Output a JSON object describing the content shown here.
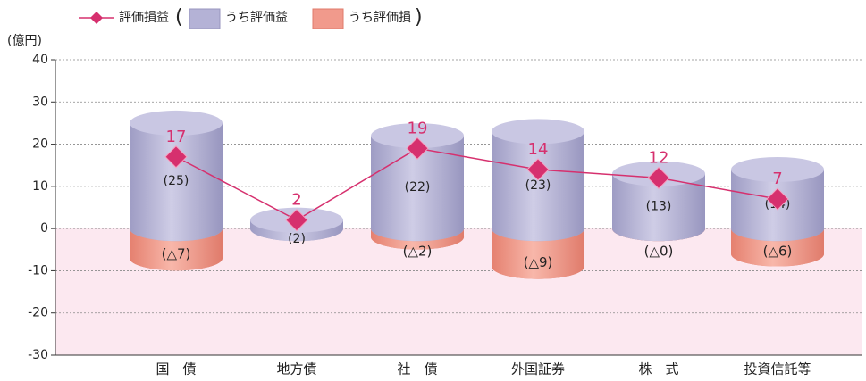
{
  "chart_data": {
    "type": "bar",
    "y_label": "(億円)",
    "categories": [
      "国　債",
      "地方債",
      "社　債",
      "外国証券",
      "株　式",
      "投資信託等"
    ],
    "series": [
      {
        "name": "評価損益",
        "type": "line",
        "color": "#d6306e",
        "values": [
          17,
          2,
          19,
          14,
          12,
          7
        ]
      },
      {
        "name": "うち評価益",
        "color": "#b4b2d6",
        "values": [
          25,
          2,
          22,
          23,
          13,
          14
        ],
        "value_labels": [
          "(25)",
          "(2)",
          "(22)",
          "(23)",
          "(13)",
          "(14)"
        ]
      },
      {
        "name": "うち評価損",
        "color": "#f19a8c",
        "values": [
          -7,
          null,
          -2,
          -9,
          0,
          -6
        ],
        "value_labels": [
          "(△7)",
          null,
          "(△2)",
          "(△9)",
          "(△0)",
          "(△6)"
        ]
      }
    ],
    "legend_brackets": [
      "(",
      ")"
    ],
    "ylim": [
      -30,
      40
    ],
    "yticks": [
      -30,
      -20,
      -10,
      0,
      10,
      20,
      30,
      40
    ],
    "grid": true
  }
}
